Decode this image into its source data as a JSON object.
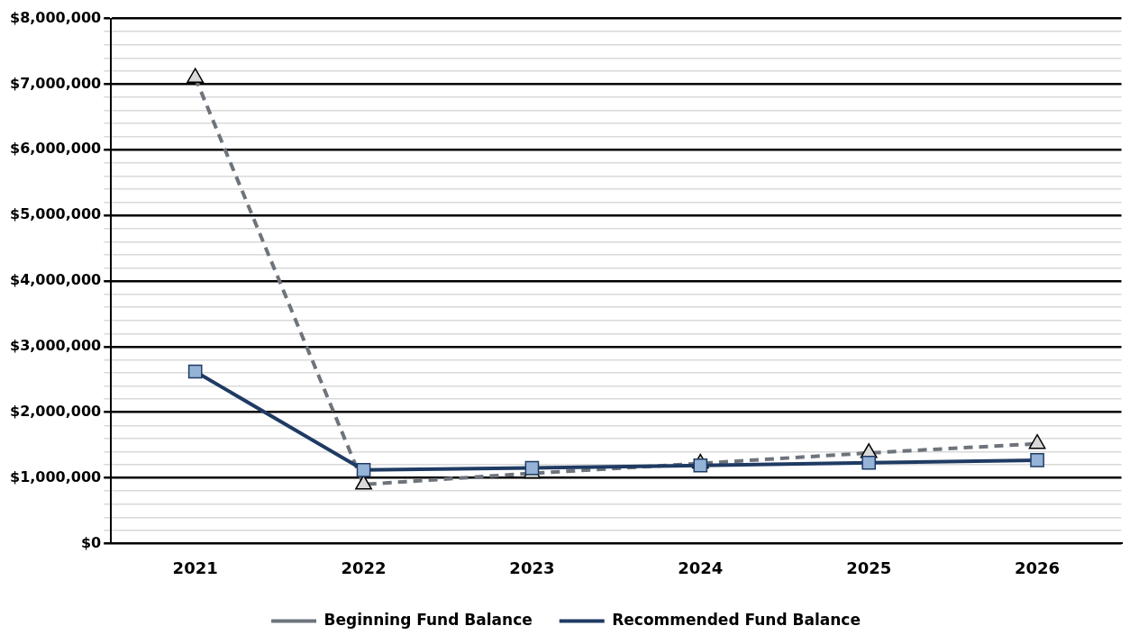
{
  "chart_data": {
    "type": "line",
    "categories": [
      "2021",
      "2022",
      "2023",
      "2024",
      "2025",
      "2026"
    ],
    "series": [
      {
        "name": "Beginning Fund Balance",
        "color": "#6e747c",
        "values": [
          7100000,
          900000,
          1070000,
          1220000,
          1380000,
          1520000
        ],
        "marker": "triangle",
        "line_style": "dashed"
      },
      {
        "name": "Recommended Fund Balance",
        "color": "#1f3b63",
        "values": [
          2620000,
          1120000,
          1150000,
          1190000,
          1230000,
          1270000
        ],
        "marker": "square",
        "line_style": "solid"
      }
    ],
    "ylim": [
      0,
      8000000
    ],
    "yticks": [
      {
        "value": 0,
        "label": "$0"
      },
      {
        "value": 200000,
        "label": null
      },
      {
        "value": 400000,
        "label": null
      },
      {
        "value": 600000,
        "label": null
      },
      {
        "value": 800000,
        "label": null
      },
      {
        "value": 1000000,
        "label": "$1,000,000"
      },
      {
        "value": 1200000,
        "label": null
      },
      {
        "value": 1400000,
        "label": null
      },
      {
        "value": 1600000,
        "label": null
      },
      {
        "value": 1800000,
        "label": null
      },
      {
        "value": 2000000,
        "label": "$2,000,000"
      },
      {
        "value": 2200000,
        "label": null
      },
      {
        "value": 2400000,
        "label": null
      },
      {
        "value": 2600000,
        "label": null
      },
      {
        "value": 2800000,
        "label": null
      },
      {
        "value": 3000000,
        "label": "$3,000,000"
      },
      {
        "value": 3200000,
        "label": null
      },
      {
        "value": 3400000,
        "label": null
      },
      {
        "value": 3600000,
        "label": null
      },
      {
        "value": 3800000,
        "label": null
      },
      {
        "value": 4000000,
        "label": "$4,000,000"
      },
      {
        "value": 4200000,
        "label": null
      },
      {
        "value": 4400000,
        "label": null
      },
      {
        "value": 4600000,
        "label": null
      },
      {
        "value": 4800000,
        "label": null
      },
      {
        "value": 5000000,
        "label": "$5,000,000"
      },
      {
        "value": 5200000,
        "label": null
      },
      {
        "value": 5400000,
        "label": null
      },
      {
        "value": 5600000,
        "label": null
      },
      {
        "value": 5800000,
        "label": null
      },
      {
        "value": 6000000,
        "label": "$6,000,000"
      },
      {
        "value": 6200000,
        "label": null
      },
      {
        "value": 6400000,
        "label": null
      },
      {
        "value": 6600000,
        "label": null
      },
      {
        "value": 6800000,
        "label": null
      },
      {
        "value": 7000000,
        "label": "$7,000,000"
      },
      {
        "value": 7200000,
        "label": null
      },
      {
        "value": 7400000,
        "label": null
      },
      {
        "value": 7600000,
        "label": null
      },
      {
        "value": 7800000,
        "label": null
      },
      {
        "value": 8000000,
        "label": "$8,000,000"
      }
    ],
    "grid": "y",
    "legend": "bottom"
  }
}
